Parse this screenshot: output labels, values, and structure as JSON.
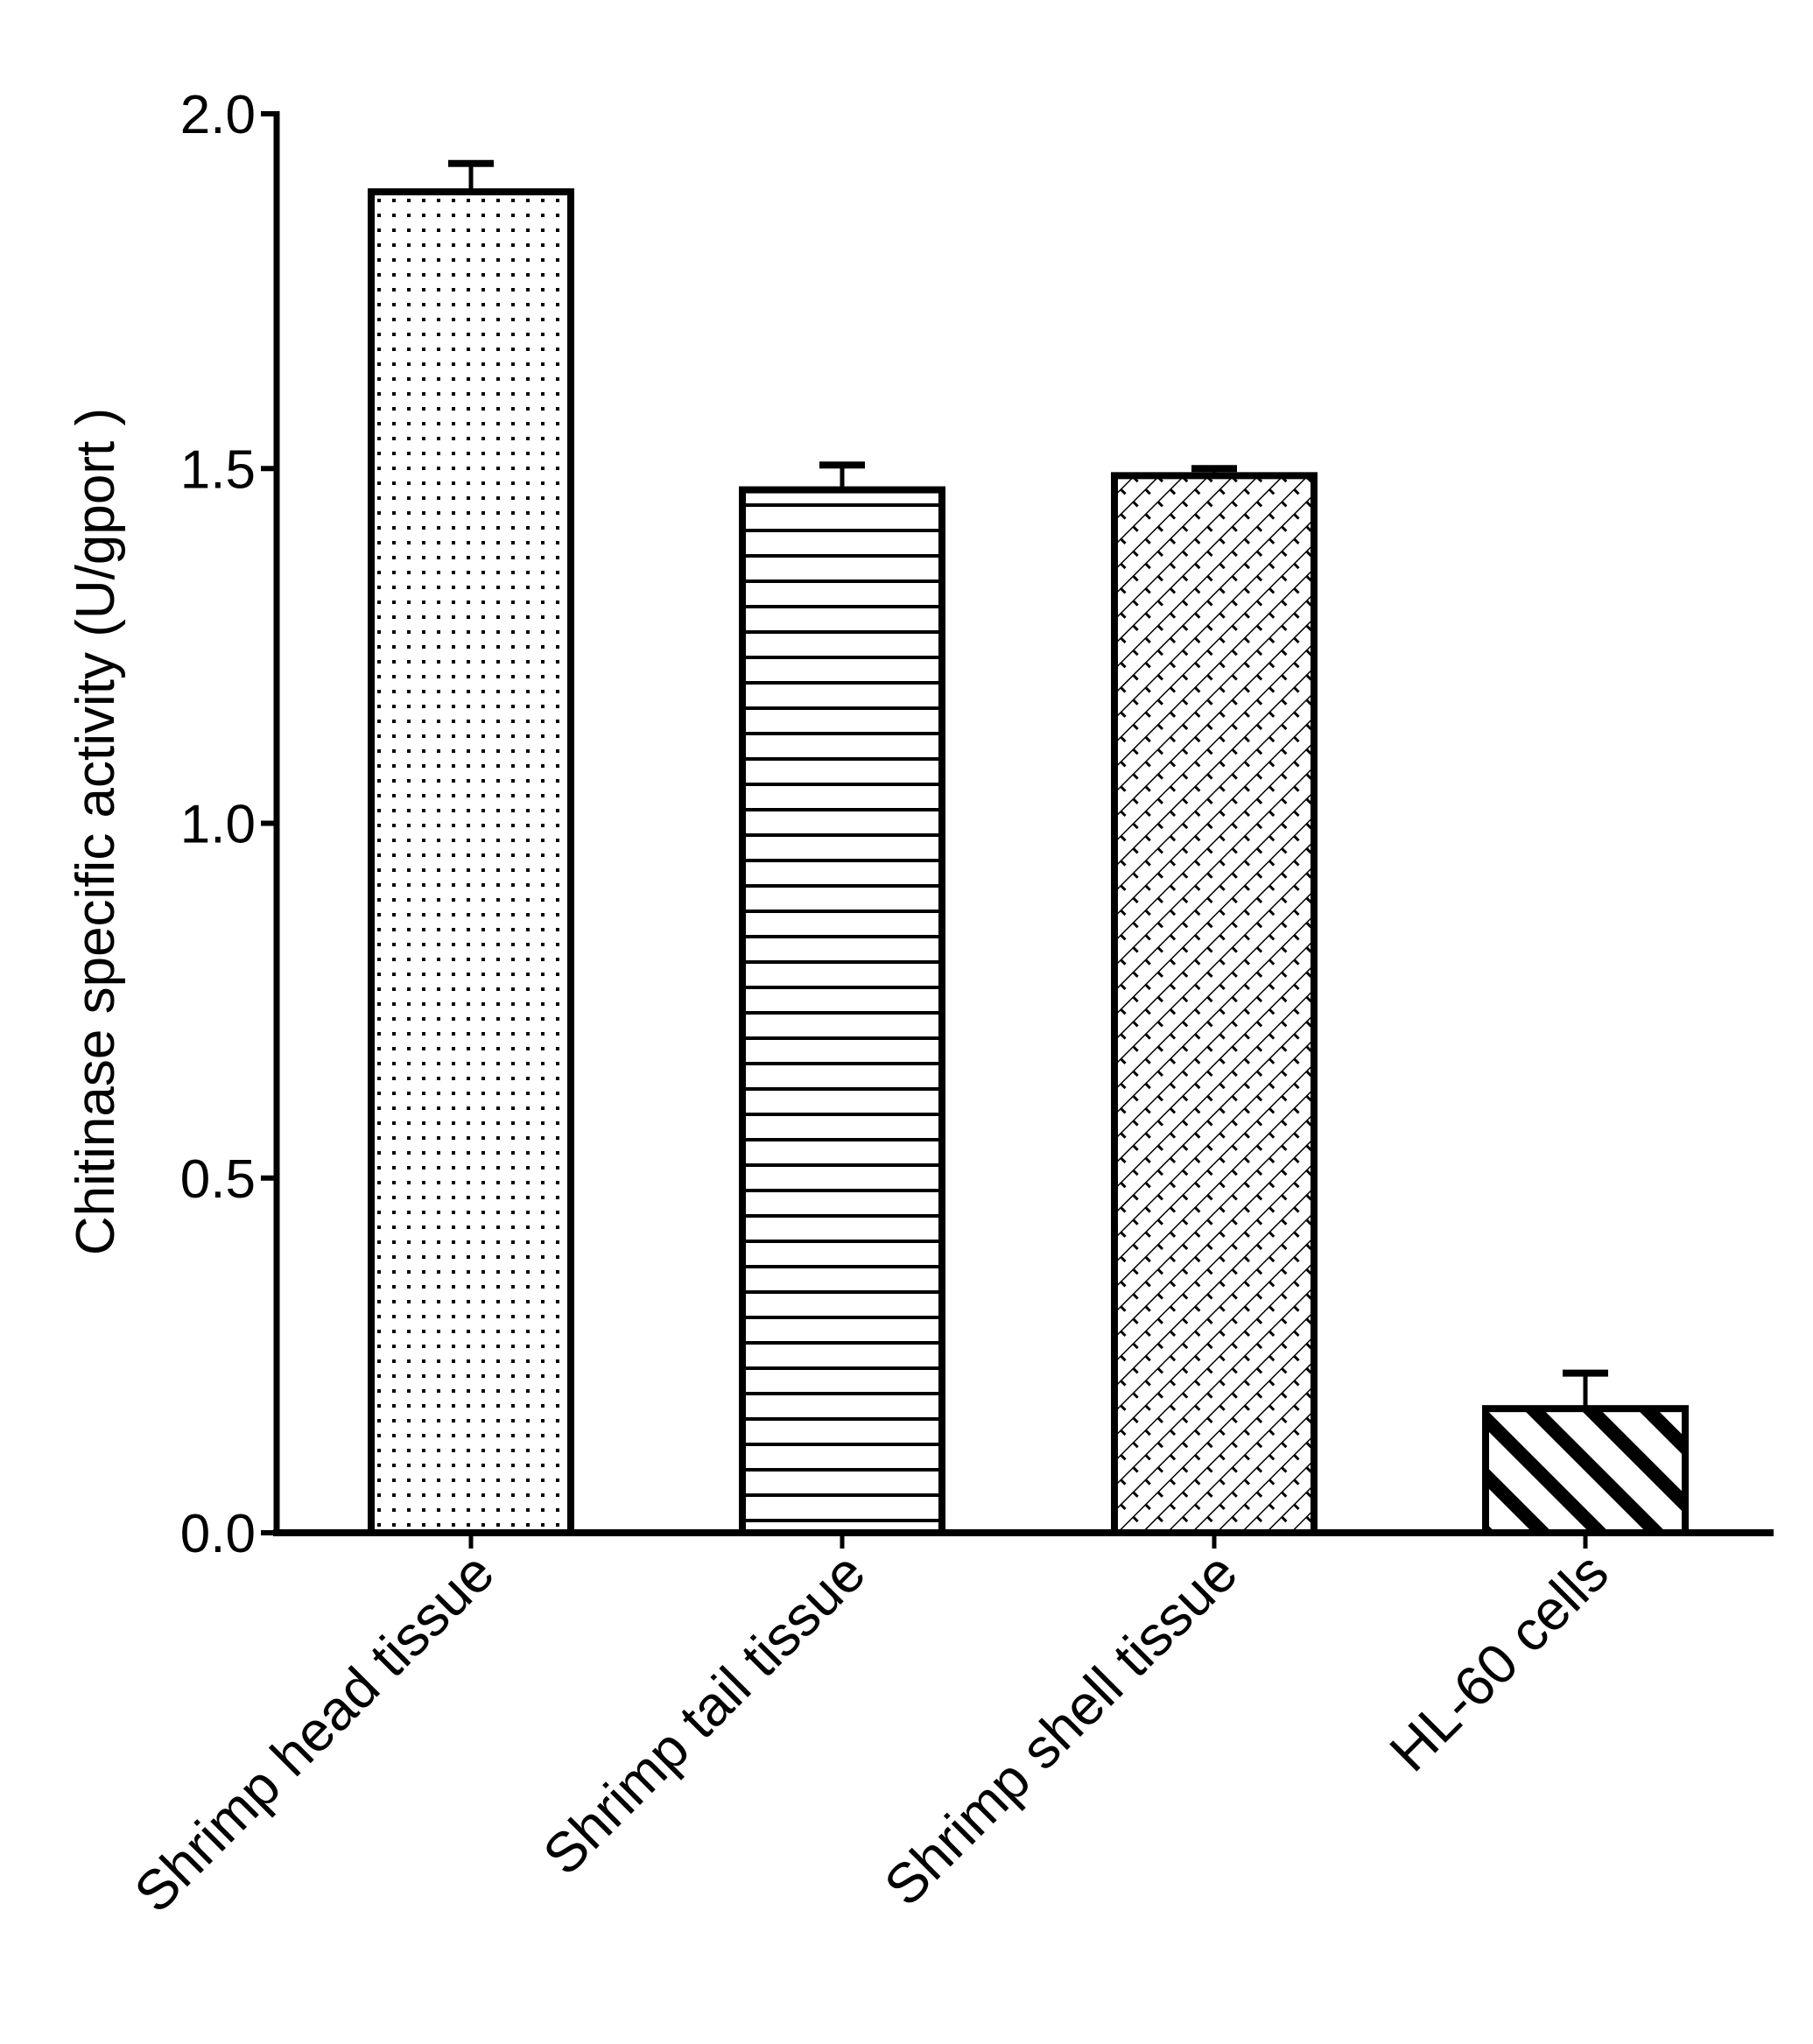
{
  "chart_data": {
    "type": "bar",
    "title": "",
    "xlabel": "",
    "ylabel": "Chitinase specific activity  (U/gport )",
    "categories": [
      "Shrimp head tissue",
      "Shrimp tail tissue",
      "Shrimp shell tissue",
      "HL-60 cells"
    ],
    "values": [
      1.89,
      1.47,
      1.49,
      0.175
    ],
    "error_upper": [
      1.93,
      1.505,
      1.5,
      0.225
    ],
    "fill_patterns": [
      "dots",
      "horizontal-lines",
      "crosshatch",
      "diagonal-stripes"
    ],
    "ylim": [
      0,
      2.0
    ],
    "yticks": [
      "0.0",
      "0.5",
      "1.0",
      "1.5",
      "2.0"
    ],
    "grid": false,
    "colors": {
      "stroke": "#000000",
      "background": "#ffffff"
    }
  }
}
